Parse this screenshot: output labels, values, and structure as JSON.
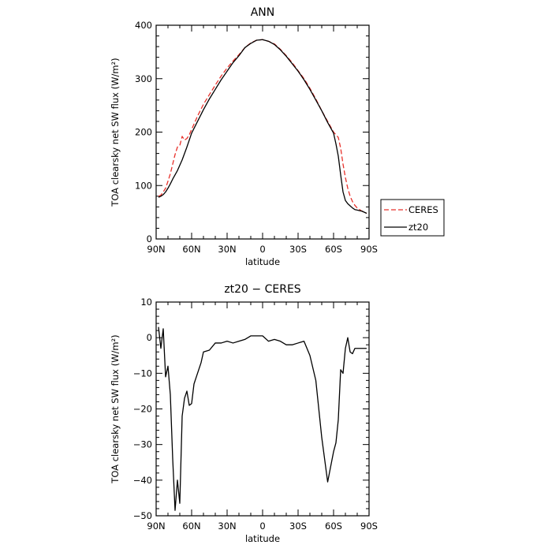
{
  "chart_data": [
    {
      "type": "line",
      "title": "ANN",
      "xlabel": "latitude",
      "ylabel": "TOA clearsky net SW flux (W/m²)",
      "xlim": [
        90,
        -90
      ],
      "ylim": [
        0,
        400
      ],
      "x_ticks": [
        {
          "value": 90,
          "label": "90N"
        },
        {
          "value": 60,
          "label": "60N"
        },
        {
          "value": 30,
          "label": "30N"
        },
        {
          "value": 0,
          "label": "0"
        },
        {
          "value": -30,
          "label": "30S"
        },
        {
          "value": -60,
          "label": "60S"
        },
        {
          "value": -90,
          "label": "90S"
        }
      ],
      "y_ticks": [
        {
          "value": 0,
          "label": "0"
        },
        {
          "value": 100,
          "label": "100"
        },
        {
          "value": 200,
          "label": "200"
        },
        {
          "value": 300,
          "label": "300"
        },
        {
          "value": 400,
          "label": "400"
        }
      ],
      "legend_position": "right",
      "series": [
        {
          "name": "CERES",
          "color": "#e8312b",
          "dash": true,
          "x": [
            88,
            86,
            84,
            82,
            80,
            78,
            76,
            74,
            72,
            70,
            68,
            66,
            64,
            62,
            60,
            55,
            50,
            45,
            40,
            35,
            30,
            25,
            20,
            15,
            10,
            5,
            0,
            -5,
            -10,
            -15,
            -20,
            -25,
            -30,
            -35,
            -40,
            -45,
            -50,
            -55,
            -60,
            -62,
            -64,
            -66,
            -68,
            -70,
            -72,
            -74,
            -76,
            -78,
            -80,
            -82,
            -84,
            -86,
            -88
          ],
          "y": [
            80,
            82,
            88,
            95,
            108,
            122,
            140,
            158,
            172,
            175,
            192,
            185,
            188,
            195,
            205,
            230,
            252,
            270,
            288,
            305,
            320,
            333,
            345,
            358,
            367,
            372,
            373,
            370,
            365,
            355,
            343,
            330,
            315,
            300,
            282,
            262,
            240,
            220,
            200,
            195,
            190,
            170,
            140,
            115,
            95,
            80,
            70,
            63,
            58,
            55,
            52,
            50,
            48
          ]
        },
        {
          "name": "zt20",
          "color": "#000000",
          "dash": false,
          "x": [
            88,
            86,
            84,
            82,
            80,
            78,
            76,
            74,
            72,
            70,
            68,
            66,
            64,
            62,
            60,
            55,
            50,
            45,
            40,
            35,
            30,
            25,
            20,
            15,
            10,
            5,
            0,
            -5,
            -10,
            -15,
            -20,
            -25,
            -30,
            -35,
            -40,
            -45,
            -50,
            -55,
            -60,
            -62,
            -64,
            -66,
            -68,
            -70,
            -72,
            -74,
            -76,
            -78,
            -80,
            -82,
            -84,
            -86,
            -88
          ],
          "y": [
            78,
            80,
            83,
            88,
            95,
            103,
            112,
            120,
            128,
            138,
            148,
            160,
            172,
            185,
            198,
            220,
            242,
            262,
            280,
            298,
            314,
            330,
            343,
            358,
            366,
            372,
            373,
            370,
            364,
            354,
            342,
            328,
            314,
            298,
            280,
            260,
            240,
            218,
            198,
            178,
            155,
            120,
            88,
            72,
            66,
            62,
            58,
            55,
            54,
            53,
            52,
            50,
            48
          ]
        }
      ]
    },
    {
      "type": "line",
      "title": "zt20 − CERES",
      "xlabel": "latitude",
      "ylabel": "TOA clearsky net SW flux (W/m²)",
      "xlim": [
        90,
        -90
      ],
      "ylim": [
        -50,
        10
      ],
      "x_ticks": [
        {
          "value": 90,
          "label": "90N"
        },
        {
          "value": 60,
          "label": "60N"
        },
        {
          "value": 30,
          "label": "30N"
        },
        {
          "value": 0,
          "label": "0"
        },
        {
          "value": -30,
          "label": "30S"
        },
        {
          "value": -60,
          "label": "60S"
        },
        {
          "value": -90,
          "label": "90S"
        }
      ],
      "y_ticks": [
        {
          "value": -50,
          "label": "−50"
        },
        {
          "value": -40,
          "label": "−40"
        },
        {
          "value": -30,
          "label": "−30"
        },
        {
          "value": -20,
          "label": "−20"
        },
        {
          "value": -10,
          "label": "−10"
        },
        {
          "value": 0,
          "label": "0"
        },
        {
          "value": 10,
          "label": "10"
        }
      ],
      "series": [
        {
          "color": "#000000",
          "dash": false,
          "x": [
            88,
            86,
            84,
            82,
            80,
            78,
            76,
            74,
            72,
            70,
            68,
            66,
            64,
            62,
            60,
            58,
            56,
            54,
            52,
            50,
            45,
            40,
            35,
            30,
            25,
            20,
            15,
            10,
            5,
            0,
            -5,
            -10,
            -15,
            -20,
            -25,
            -30,
            -35,
            -40,
            -45,
            -50,
            -55,
            -60,
            -62,
            -64,
            -66,
            -68,
            -70,
            -72,
            -74,
            -76,
            -78,
            -80,
            -82,
            -84,
            -86,
            -88
          ],
          "y": [
            3,
            -3,
            2.5,
            -11,
            -8,
            -16,
            -34,
            -48.5,
            -40,
            -46.5,
            -22,
            -17,
            -15,
            -19,
            -18.5,
            -13,
            -11,
            -9,
            -7,
            -4,
            -3.5,
            -1.5,
            -1.5,
            -1,
            -1.5,
            -1,
            -0.5,
            0.5,
            0.5,
            0.5,
            -1,
            -0.5,
            -1,
            -2,
            -2,
            -1.5,
            -1,
            -5,
            -12,
            -28,
            -40.5,
            -32,
            -29.5,
            -23,
            -9,
            -10,
            -3,
            0,
            -4,
            -4.5,
            -3,
            -3,
            -3,
            -3,
            -3,
            -3
          ]
        }
      ]
    }
  ]
}
